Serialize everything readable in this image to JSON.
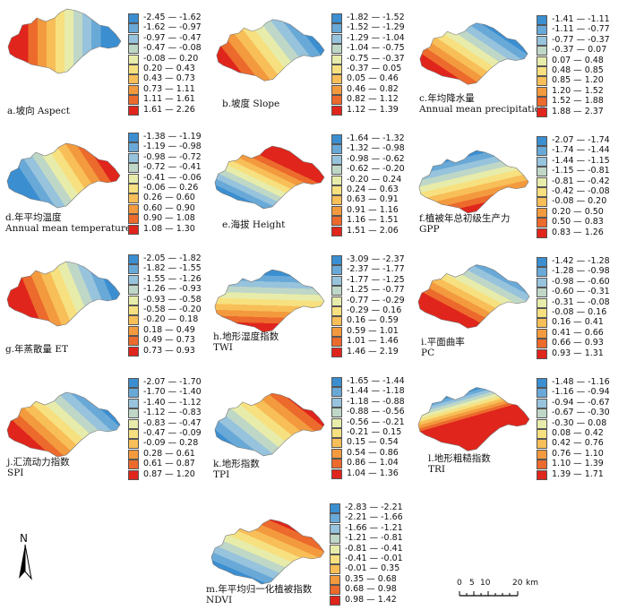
{
  "panels": [
    {
      "id": "a",
      "label_line1": "a.坡向 Aspect",
      "label_line2": "",
      "colors": [
        "#3b8fd1",
        "#69a9d8",
        "#97c3dc",
        "#bfd7c7",
        "#e7ecaa",
        "#f7e07f",
        "#f8be58",
        "#f39a3e",
        "#ec6a2c",
        "#e0251c"
      ],
      "ranges": [
        "-2.45 — -1.62",
        "-1.62 — -0.97",
        "-0.97 — -0.47",
        "-0.47 — -0.08",
        "-0.08 — 0.20",
        "0.20 — 0.43",
        "0.43 — 0.73",
        "0.73 — 1.11",
        "1.11 — 1.61",
        "1.61 — 2.26"
      ]
    },
    {
      "id": "b",
      "label_line1": "b.坡度 Slope",
      "label_line2": "",
      "colors": [
        "#3b8fd1",
        "#69a9d8",
        "#97c3dc",
        "#bfd7c7",
        "#e7ecaa",
        "#f7e07f",
        "#f8be58",
        "#f39a3e",
        "#ec6a2c",
        "#e0251c"
      ],
      "ranges": [
        "-1.82 — -1.52",
        "-1.52 — -1.29",
        "-1.29 — -1.04",
        "-1.04 — -0.75",
        "-0.75 — -0.37",
        "-0.37 — 0.05",
        "0.05 — 0.46",
        "0.46 — 0.82",
        "0.82 — 1.12",
        "1.12 — 1.39"
      ]
    },
    {
      "id": "c",
      "label_line1": "c.年均降水量",
      "label_line2": "Annual mean precipitation",
      "colors": [
        "#3b8fd1",
        "#69a9d8",
        "#97c3dc",
        "#bfd7c7",
        "#e7ecaa",
        "#f7e07f",
        "#f8be58",
        "#f39a3e",
        "#ec6a2c",
        "#e0251c"
      ],
      "ranges": [
        "-1.41 — -1.11",
        "-1.11 — -0.77",
        "-0.77 — -0.37",
        "-0.37 — 0.07",
        "0.07 — 0.48",
        "0.48 — 0.85",
        "0.85 — 1.20",
        "1.20 — 1.52",
        "1.52 — 1.88",
        "1.88 — 2.37"
      ]
    },
    {
      "id": "d",
      "label_line1": "d.年平均温度",
      "label_line2": "Annual mean temperature",
      "colors": [
        "#3b8fd1",
        "#69a9d8",
        "#97c3dc",
        "#bfd7c7",
        "#e7ecaa",
        "#f7e07f",
        "#f8be58",
        "#f39a3e",
        "#ec6a2c",
        "#e0251c"
      ],
      "ranges": [
        "-1.38 — -1.19",
        "-1.19 — -0.98",
        "-0.98 — -0.72",
        "-0.72 — -0.41",
        "-0.41 — -0.06",
        "-0.06 — 0.26",
        "0.26 — 0.60",
        "0.60 — 0.90",
        "0.90 — 1.08",
        "1.08 — 1.30"
      ]
    },
    {
      "id": "e",
      "label_line1": "e.海拔 Height",
      "label_line2": "",
      "colors": [
        "#3b8fd1",
        "#69a9d8",
        "#97c3dc",
        "#bfd7c7",
        "#e7ecaa",
        "#f7e07f",
        "#f8be58",
        "#f39a3e",
        "#ec6a2c",
        "#e0251c"
      ],
      "ranges": [
        "-1.64 — -1.32",
        "-1.32 — -0.98",
        "-0.98 — -0.62",
        "-0.62 — -0.20",
        "-0.20 — 0.24",
        "0.24 — 0.63",
        "0.63 — 0.91",
        "0.91 — 1.16",
        "1.16 — 1.51",
        "1.51 — 2.06"
      ]
    },
    {
      "id": "f",
      "label_line1": "f.植被年总初级生产力",
      "label_line2": "GPP",
      "colors": [
        "#3b8fd1",
        "#69a9d8",
        "#97c3dc",
        "#bfd7c7",
        "#e7ecaa",
        "#f7e07f",
        "#f8be58",
        "#f39a3e",
        "#ec6a2c",
        "#e0251c"
      ],
      "ranges": [
        "-2.07 — -1.74",
        "-1.74 — -1.44",
        "-1.44 — -1.15",
        "-1.15 — -0.81",
        "-0.81 — -0.42",
        "-0.42 — -0.08",
        "-0.08 — 0.20",
        "0.20 — 0.50",
        "0.50 — 0.83",
        "0.83 — 1.26"
      ]
    },
    {
      "id": "g",
      "label_line1": "g.年蒸散量 ET",
      "label_line2": "",
      "colors": [
        "#3b8fd1",
        "#69a9d8",
        "#97c3dc",
        "#bfd7c7",
        "#e7ecaa",
        "#f7e07f",
        "#f8be58",
        "#f39a3e",
        "#ec6a2c",
        "#e0251c"
      ],
      "ranges": [
        "-2.05 — -1.82",
        "-1.82 — -1.55",
        "-1.55 — -1.26",
        "-1.26 — -0.93",
        "-0.93 — -0.58",
        "-0.58 — -0.20",
        "-0.20 — 0.18",
        "0.18 — 0.49",
        "0.49 — 0.73",
        "0.73 — 0.93"
      ]
    },
    {
      "id": "h",
      "label_line1": "h.地形湿度指数",
      "label_line2": "TWI",
      "colors": [
        "#3b8fd1",
        "#69a9d8",
        "#97c3dc",
        "#bfd7c7",
        "#e7ecaa",
        "#f7e07f",
        "#f8be58",
        "#f39a3e",
        "#ec6a2c",
        "#e0251c"
      ],
      "ranges": [
        "-3.09 — -2.37",
        "-2.37 — -1.77",
        "-1.77 — -1.25",
        "-1.25 — -0.77",
        "-0.77 — -0.29",
        "-0.29 — 0.16",
        "0.16 — 0.59",
        "0.59 — 1.01",
        "1.01 — 1.46",
        "1.46 — 2.19"
      ]
    },
    {
      "id": "i",
      "label_line1": "i.平面曲率",
      "label_line2": "PC",
      "colors": [
        "#3b8fd1",
        "#69a9d8",
        "#97c3dc",
        "#bfd7c7",
        "#e7ecaa",
        "#f7e07f",
        "#f8be58",
        "#f39a3e",
        "#ec6a2c",
        "#e0251c"
      ],
      "ranges": [
        "-1.42 — -1.28",
        "-1.28 — -0.98",
        "-0.98 — -0.60",
        "-0.60 — -0.31",
        "-0.31 — -0.08",
        "-0.08 — 0.16",
        "0.16 — 0.41",
        "0.41 — 0.66",
        "0.66 — 0.93",
        "0.93 — 1.31"
      ]
    },
    {
      "id": "j",
      "label_line1": "j.汇流动力指数",
      "label_line2": "SPI",
      "colors": [
        "#3b8fd1",
        "#69a9d8",
        "#97c3dc",
        "#bfd7c7",
        "#e7ecaa",
        "#f7e07f",
        "#f8be58",
        "#f39a3e",
        "#ec6a2c",
        "#e0251c"
      ],
      "ranges": [
        "-2.07 — -1.70",
        "-1.70 — -1.40",
        "-1.40 — -1.12",
        "-1.12 — -0.83",
        "-0.83 — -0.47",
        "-0.47 — -0.09",
        "-0.09 — 0.28",
        "0.28 — 0.61",
        "0.61 — 0.87",
        "0.87 — 1.20"
      ]
    },
    {
      "id": "k",
      "label_line1": "k.地形指数",
      "label_line2": "TPI",
      "colors": [
        "#3b8fd1",
        "#69a9d8",
        "#97c3dc",
        "#bfd7c7",
        "#e7ecaa",
        "#f7e07f",
        "#f8be58",
        "#f39a3e",
        "#ec6a2c",
        "#e0251c"
      ],
      "ranges": [
        "-1.65 — -1.44",
        "-1.44 — -1.18",
        "-1.18 — -0.88",
        "-0.88 — -0.56",
        "-0.56 — -0.21",
        "-0.21 — 0.15",
        "0.15 — 0.54",
        "0.54 — 0.86",
        "0.86 — 1.04",
        "1.04 — 1.36"
      ]
    },
    {
      "id": "l",
      "label_line1": "l.地形粗糙指数",
      "label_line2": "TRI",
      "colors": [
        "#3b8fd1",
        "#69a9d8",
        "#97c3dc",
        "#bfd7c7",
        "#e7ecaa",
        "#f7e07f",
        "#f8be58",
        "#f39a3e",
        "#ec6a2c",
        "#e0251c"
      ],
      "ranges": [
        "-1.48 — -1.16",
        "-1.16 — -0.94",
        "-0.94 — -0.67",
        "-0.67 — -0.30",
        "-0.30 — 0.08",
        "0.08 — 0.42",
        "0.42 — 0.76",
        "0.76 — 1.10",
        "1.10 — 1.39",
        "1.39 — 1.71"
      ]
    },
    {
      "id": "m",
      "label_line1": "m.年平均归一化植被指数",
      "label_line2": "NDVI",
      "colors": [
        "#3b8fd1",
        "#69a9d8",
        "#97c3dc",
        "#bfd7c7",
        "#e7ecaa",
        "#f7e07f",
        "#f8be58",
        "#f39a3e",
        "#ec6a2c",
        "#e0251c"
      ],
      "ranges": [
        "-2.83 — -2.21",
        "-2.21 — -1.66",
        "-1.66 — -1.21",
        "-1.21 — -0.81",
        "-0.81 — -0.41",
        "-0.41 — -0.01",
        "-0.01 — 0.35",
        "0.35 — 0.68",
        "0.68 — 0.98",
        "0.98 — 1.42"
      ]
    }
  ],
  "north_arrow": {
    "label": "N"
  },
  "scale_bar": {
    "ticks": [
      "0",
      "5",
      "10",
      "20"
    ],
    "unit": "km"
  }
}
